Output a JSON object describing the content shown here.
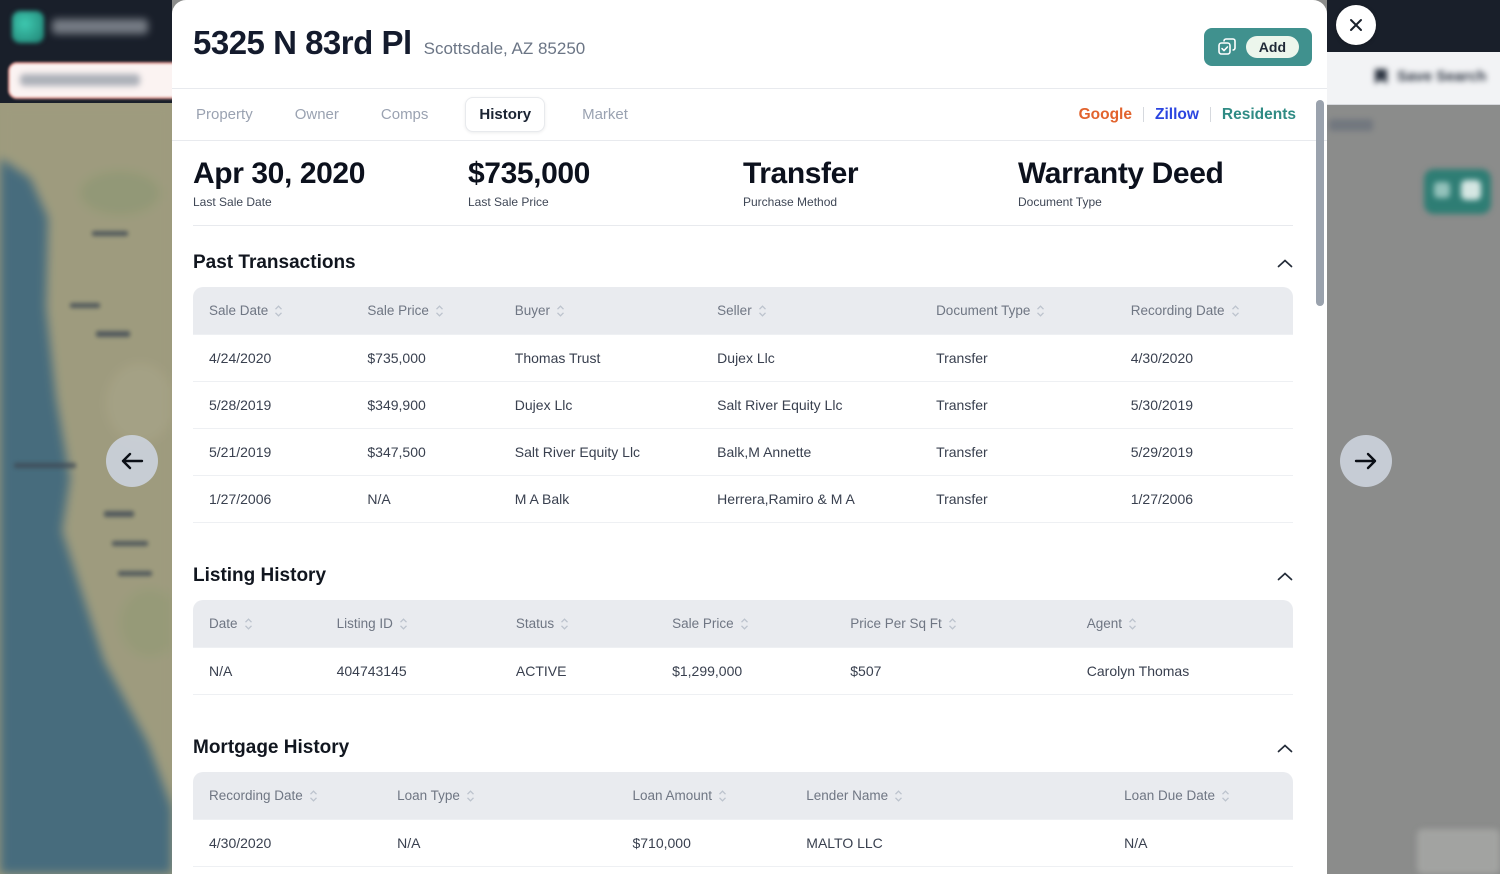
{
  "backdrop": {
    "save_search_label": "Save Search"
  },
  "modal": {
    "title": "5325 N 83rd Pl",
    "subtitle": "Scottsdale, AZ 85250",
    "add_label": "Add",
    "tabs": [
      {
        "label": "Property",
        "active": false
      },
      {
        "label": "Owner",
        "active": false
      },
      {
        "label": "Comps",
        "active": false
      },
      {
        "label": "History",
        "active": true
      },
      {
        "label": "Market",
        "active": false
      }
    ],
    "external_links": [
      {
        "label": "Google",
        "color": "#e2632d"
      },
      {
        "label": "Zillow",
        "color": "#2b45e0"
      },
      {
        "label": "Residents",
        "color": "#2f8b84"
      }
    ],
    "summary": [
      {
        "value": "Apr 30, 2020",
        "label": "Last Sale Date"
      },
      {
        "value": "$735,000",
        "label": "Last Sale Price"
      },
      {
        "value": "Transfer",
        "label": "Purchase Method"
      },
      {
        "value": "Warranty Deed",
        "label": "Document Type"
      }
    ],
    "sections": [
      {
        "title": "Past Transactions",
        "columns": [
          "Sale Date",
          "Sale Price",
          "Buyer",
          "Seller",
          "Document Type",
          "Recording Date"
        ],
        "rows": [
          [
            "4/24/2020",
            "$735,000",
            "Thomas Trust",
            "Dujex Llc",
            "Transfer",
            "4/30/2020"
          ],
          [
            "5/28/2019",
            "$349,900",
            "Dujex Llc",
            "Salt River Equity Llc",
            "Transfer",
            "5/30/2019"
          ],
          [
            "5/21/2019",
            "$347,500",
            "Salt River Equity Llc",
            "Balk,M Annette",
            "Transfer",
            "5/29/2019"
          ],
          [
            "1/27/2006",
            "N/A",
            "M A Balk",
            "Herrera,Ramiro & M A",
            "Transfer",
            "1/27/2006"
          ]
        ]
      },
      {
        "title": "Listing History",
        "columns": [
          "Date",
          "Listing ID",
          "Status",
          "Sale Price",
          "Price Per Sq Ft",
          "Agent"
        ],
        "rows": [
          [
            "N/A",
            "404743145",
            "ACTIVE",
            "$1,299,000",
            "$507",
            "Carolyn Thomas"
          ]
        ]
      },
      {
        "title": "Mortgage History",
        "columns": [
          "Recording Date",
          "Loan Type",
          "Loan Amount",
          "Lender Name",
          "Loan Due Date"
        ],
        "rows": [
          [
            "4/30/2020",
            "N/A",
            "$710,000",
            "MALTO LLC",
            "N/A"
          ]
        ]
      }
    ],
    "colors": {
      "accent_teal": "#40918e",
      "header_bg": "#e9ebef"
    }
  }
}
